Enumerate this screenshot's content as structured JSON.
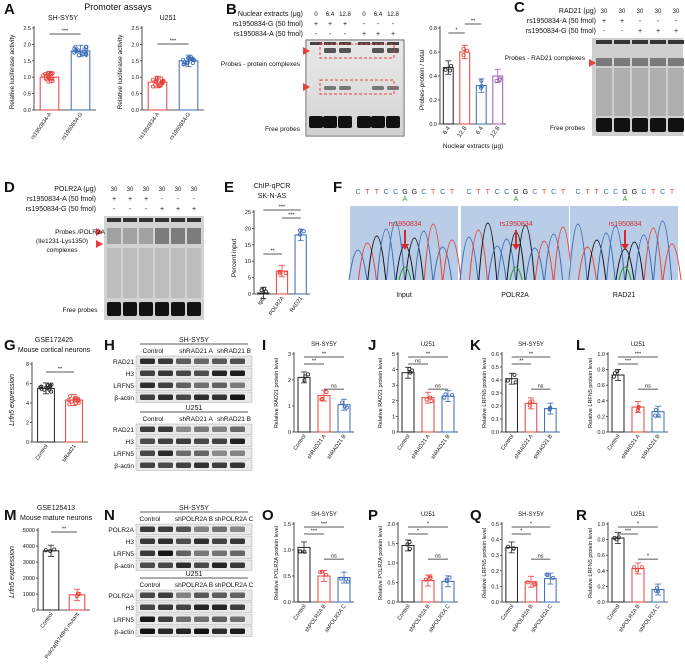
{
  "panels": {
    "A": {
      "letter": "A",
      "title": "Promoter assays",
      "left": {
        "cell": "SH-SY5Y",
        "ylabel": "Relative luciferase activity",
        "ticks": [
          "0.0",
          "0.5",
          "1.0",
          "1.5",
          "2.0",
          "2.5"
        ],
        "cats": [
          "rs1950834-A",
          "rs1950834-G"
        ],
        "values": [
          1.0,
          1.8
        ],
        "sig": "***"
      },
      "right": {
        "cell": "U251",
        "ylabel": "Relative luciferase activity",
        "ticks": [
          "0.0",
          "0.5",
          "1.0",
          "1.5",
          "2.0",
          "2.5"
        ],
        "cats": [
          "rs1950834-A",
          "rs1950834-G"
        ],
        "values": [
          0.85,
          1.5
        ],
        "sig": "***"
      }
    },
    "B": {
      "letter": "B",
      "row1": "Nuclear extracts (μg)",
      "row2": "rs1950834-G (50 fmol)",
      "row3": "rs1950834-A (50 fmol)",
      "amounts": [
        "0",
        "6.4",
        "12.8",
        "0",
        "6.4",
        "12.8"
      ],
      "signs_g": [
        "+",
        "+",
        "+",
        "-",
        "-",
        "-"
      ],
      "signs_a": [
        "-",
        "-",
        "-",
        "+",
        "+",
        "+"
      ],
      "complex_label": "Probes - protein complexes",
      "free_label": "Free probes",
      "chart": {
        "ylabel": "Probes-protein / total",
        "xlabel": "Nuclear extracts (μg)",
        "ticks": [
          "0.0",
          "0.2",
          "0.4",
          "0.6",
          "0.8"
        ],
        "cats": [
          "6.4",
          "12.8",
          "6.4",
          "12.8"
        ],
        "values": [
          0.47,
          0.6,
          0.32,
          0.4
        ],
        "sig1": "*",
        "sig2": "**"
      }
    },
    "C": {
      "letter": "C",
      "row1": "RAD21 (μg)",
      "row2": "rs1950834-A (50 fmol)",
      "row3": "rs1950834-G (50 fmol)",
      "amounts": [
        "30",
        "30",
        "30",
        "30",
        "30"
      ],
      "signs_a": [
        "+",
        "+",
        "-",
        "-",
        "-"
      ],
      "signs_g": [
        "-",
        "-",
        "+",
        "+",
        "+"
      ],
      "complex_label": "Probes - RAD21 complexes",
      "free_label": "Free probes"
    },
    "D": {
      "letter": "D",
      "row1": "POLR2A (μg)",
      "row2": "rs1950834-A (50 fmol)",
      "row3": "rs1950834-G (50 fmol)",
      "amounts": [
        "30",
        "30",
        "30",
        "30",
        "30",
        "30"
      ],
      "signs_a": [
        "+",
        "+",
        "+",
        "-",
        "-",
        "-"
      ],
      "signs_g": [
        "-",
        "-",
        "-",
        "+",
        "+",
        "+"
      ],
      "complex_label_1": "Probes /POLR2A",
      "complex_label_2": "(Ile1231-Lys1350)",
      "complex_label_3": "complexes",
      "free_label": "Free probes"
    },
    "E": {
      "letter": "E",
      "title1": "ChIP-qPCR",
      "title2": "SK-N-AS",
      "ylabel": "Percent input",
      "ticks": [
        "0",
        "5",
        "10",
        "15",
        "20",
        "25"
      ],
      "cats": [
        "IgG",
        "POLR2A",
        "RAD21"
      ],
      "values": [
        0.3,
        7,
        18
      ],
      "sig1": "**",
      "sig2": "***",
      "sig3": "***"
    },
    "F": {
      "letter": "F",
      "seq": [
        "C",
        "T",
        "T",
        "C",
        "C",
        "G",
        "G",
        "C",
        "T",
        "C",
        "T"
      ],
      "allele": "A",
      "snp": "rs1950834",
      "tracks": [
        "Input",
        "POLR2A",
        "RAD21"
      ]
    },
    "G": {
      "letter": "G",
      "title1": "GSE172425",
      "title2": "Mouse cortical neurons",
      "ylabel": "Lrfn5 expression",
      "ticks": [
        "0",
        "2",
        "4",
        "6",
        "8"
      ],
      "cats": [
        "Control",
        "siRad21"
      ],
      "values": [
        5.5,
        4.3
      ],
      "sig": "**"
    },
    "H": {
      "letter": "H",
      "blot1": {
        "cell": "SH-SY5Y",
        "lanes": [
          "Control",
          "shRAD21 A",
          "shRAD21 B"
        ],
        "rows": [
          "RAD21",
          "H3",
          "LRFN5",
          "β-actin"
        ]
      },
      "blot2": {
        "cell": "U251",
        "lanes": [
          "Control",
          "shRAD21 A",
          "shRAD21 B"
        ],
        "rows": [
          "RAD21",
          "H3",
          "LRFN5",
          "β-actin"
        ]
      }
    },
    "I": {
      "letter": "I",
      "cell": "SH-SY5Y",
      "ylabel": "Relative RAD21 protein level",
      "ticks": [
        "0",
        "1",
        "2",
        "3"
      ],
      "cats": [
        "Control",
        "shRAD21 A",
        "shRAD21 B"
      ],
      "values": [
        2.1,
        1.4,
        1.05
      ],
      "sigs": [
        "**",
        "**",
        "ns"
      ]
    },
    "J": {
      "letter": "J",
      "cell": "U251",
      "ylabel": "Relative RAD21 protein level",
      "ticks": [
        "0",
        "1",
        "2",
        "3",
        "4",
        "5"
      ],
      "cats": [
        "Control",
        "shRAD21 A",
        "shRAD21 B"
      ],
      "values": [
        3.8,
        2.2,
        2.3
      ],
      "sigs": [
        "ns",
        "**",
        "ns"
      ]
    },
    "K": {
      "letter": "K",
      "cell": "SH-SY5Y",
      "ylabel": "Relative LRFN5 protein level",
      "ticks": [
        "0.0",
        "0.1",
        "0.2",
        "0.3",
        "0.4",
        "0.5",
        "0.6"
      ],
      "cats": [
        "Control",
        "shRAD21 A",
        "shRAD21 B"
      ],
      "values": [
        0.41,
        0.22,
        0.18
      ],
      "sigs": [
        "**",
        "**",
        "ns"
      ]
    },
    "L": {
      "letter": "L",
      "cell": "U251",
      "ylabel": "Relative LRFN5 protein level",
      "ticks": [
        "0.0",
        "0.2",
        "0.4",
        "0.6",
        "0.8",
        "1.0"
      ],
      "cats": [
        "Control",
        "shRAD21 A",
        "shRAD21 B"
      ],
      "values": [
        0.73,
        0.32,
        0.26
      ],
      "sigs": [
        "***",
        "***",
        "ns"
      ]
    },
    "M": {
      "letter": "M",
      "title1": "GSE125413",
      "title2": "Mouse mature neurons",
      "ylabel": "Lrfn5 expression",
      "ticks": [
        "0",
        "1000",
        "2000",
        "3000",
        "4000",
        "5000"
      ],
      "cats": [
        "Control",
        "Polr2a(R749H) mutant"
      ],
      "values": [
        3700,
        950
      ],
      "sig": "**"
    },
    "N": {
      "letter": "N",
      "blot1": {
        "cell": "SH-SY5Y",
        "lanes": [
          "Control",
          "shPOLR2A B",
          "shPOLR2A C"
        ],
        "rows": [
          "POLR2A",
          "H3",
          "LRFN5",
          "β-actin"
        ]
      },
      "blot2": {
        "cell": "U251",
        "lanes": [
          "Control",
          "shPOLR2A B",
          "shPOLR2A C"
        ],
        "rows": [
          "POLR2A",
          "H3",
          "LRFN5",
          "β-actin"
        ]
      }
    },
    "O": {
      "letter": "O",
      "cell": "SH-SY5Y",
      "ylabel": "Relative POLR2A protein level",
      "ticks": [
        "0.0",
        "0.5",
        "1.0",
        "1.5"
      ],
      "cats": [
        "Control",
        "shPOLR2A B",
        "shPOLR2A C"
      ],
      "values": [
        1.05,
        0.5,
        0.47
      ],
      "sigs": [
        "***",
        "***",
        "ns"
      ]
    },
    "P": {
      "letter": "P",
      "cell": "U251",
      "ylabel": "Relative POLR2A protein level",
      "ticks": [
        "0.0",
        "0.5",
        "1.0",
        "1.5",
        "2.0"
      ],
      "cats": [
        "Control",
        "shPOLR2A B",
        "shPOLR2A C"
      ],
      "values": [
        1.45,
        0.55,
        0.53
      ],
      "sigs": [
        "*",
        "*",
        "ns"
      ]
    },
    "Q": {
      "letter": "Q",
      "cell": "SH-SY5Y",
      "ylabel": "Relative LRFN5 protein level",
      "ticks": [
        "0.0",
        "0.1",
        "0.2",
        "0.3",
        "0.4",
        "0.5"
      ],
      "cats": [
        "Control",
        "shPOLR2A B",
        "shPOLR2A C"
      ],
      "values": [
        0.35,
        0.13,
        0.15
      ],
      "sigs": [
        "*",
        "*",
        "ns"
      ]
    },
    "R": {
      "letter": "R",
      "cell": "U251",
      "ylabel": "Relative LRFN5 protein level",
      "ticks": [
        "0.0",
        "0.2",
        "0.4",
        "0.6",
        "0.8",
        "1.0"
      ],
      "cats": [
        "Control",
        "shPOLR2A B",
        "shPOLR2A C"
      ],
      "values": [
        0.82,
        0.43,
        0.16
      ],
      "sigs": [
        "***",
        "*",
        "*"
      ]
    }
  },
  "chart_data": [
    {
      "type": "bar",
      "panel": "A-left",
      "title": "SH-SY5Y",
      "categories": [
        "rs1950834-A",
        "rs1950834-G"
      ],
      "values": [
        1.0,
        1.8
      ],
      "ylabel": "Relative luciferase activity",
      "ylim": [
        0,
        2.5
      ]
    },
    {
      "type": "bar",
      "panel": "A-right",
      "title": "U251",
      "categories": [
        "rs1950834-A",
        "rs1950834-G"
      ],
      "values": [
        0.85,
        1.5
      ],
      "ylabel": "Relative luciferase activity",
      "ylim": [
        0,
        2.5
      ]
    },
    {
      "type": "bar",
      "panel": "B",
      "categories": [
        "6.4",
        "12.8",
        "6.4",
        "12.8"
      ],
      "values": [
        0.47,
        0.6,
        0.32,
        0.4
      ],
      "ylabel": "Probes-protein / total",
      "xlabel": "Nuclear extracts (μg)",
      "ylim": [
        0,
        0.8
      ]
    },
    {
      "type": "bar",
      "panel": "E",
      "title": "ChIP-qPCR SK-N-AS",
      "categories": [
        "IgG",
        "POLR2A",
        "RAD21"
      ],
      "values": [
        0.3,
        7,
        18
      ],
      "ylabel": "Percent input",
      "ylim": [
        0,
        25
      ]
    },
    {
      "type": "bar",
      "panel": "G",
      "title": "GSE172425 Mouse cortical neurons",
      "categories": [
        "Control",
        "siRad21"
      ],
      "values": [
        5.5,
        4.3
      ],
      "ylabel": "Lrfn5 expression",
      "ylim": [
        0,
        8
      ]
    },
    {
      "type": "bar",
      "panel": "I",
      "categories": [
        "Control",
        "shRAD21 A",
        "shRAD21 B"
      ],
      "values": [
        2.1,
        1.4,
        1.05
      ],
      "ylim": [
        0,
        3
      ]
    },
    {
      "type": "bar",
      "panel": "J",
      "categories": [
        "Control",
        "shRAD21 A",
        "shRAD21 B"
      ],
      "values": [
        3.8,
        2.2,
        2.3
      ],
      "ylim": [
        0,
        5
      ]
    },
    {
      "type": "bar",
      "panel": "K",
      "categories": [
        "Control",
        "shRAD21 A",
        "shRAD21 B"
      ],
      "values": [
        0.41,
        0.22,
        0.18
      ],
      "ylim": [
        0,
        0.6
      ]
    },
    {
      "type": "bar",
      "panel": "L",
      "categories": [
        "Control",
        "shRAD21 A",
        "shRAD21 B"
      ],
      "values": [
        0.73,
        0.32,
        0.26
      ],
      "ylim": [
        0,
        1.0
      ]
    },
    {
      "type": "bar",
      "panel": "M",
      "title": "GSE125413 Mouse mature neurons",
      "categories": [
        "Control",
        "Polr2a(R749H) mutant"
      ],
      "values": [
        3700,
        950
      ],
      "ylabel": "Lrfn5 expression",
      "ylim": [
        0,
        5000
      ]
    },
    {
      "type": "bar",
      "panel": "O",
      "categories": [
        "Control",
        "shPOLR2A B",
        "shPOLR2A C"
      ],
      "values": [
        1.05,
        0.5,
        0.47
      ],
      "ylim": [
        0,
        1.5
      ]
    },
    {
      "type": "bar",
      "panel": "P",
      "categories": [
        "Control",
        "shPOLR2A B",
        "shPOLR2A C"
      ],
      "values": [
        1.45,
        0.55,
        0.53
      ],
      "ylim": [
        0,
        2.0
      ]
    },
    {
      "type": "bar",
      "panel": "Q",
      "categories": [
        "Control",
        "shPOLR2A B",
        "shPOLR2A C"
      ],
      "values": [
        0.35,
        0.13,
        0.15
      ],
      "ylim": [
        0,
        0.5
      ]
    },
    {
      "type": "bar",
      "panel": "R",
      "categories": [
        "Control",
        "shPOLR2A B",
        "shPOLR2A C"
      ],
      "values": [
        0.82,
        0.43,
        0.16
      ],
      "ylim": [
        0,
        1.0
      ]
    }
  ],
  "colors": {
    "black": "#222222",
    "red": "#e8403a",
    "blue": "#3a6bb5",
    "purple": "#a05ab8",
    "gel_bg": "#dcdcdc",
    "chrom_bg": "#b9cde6",
    "snp": "#d62a2a",
    "green": "#2a9a3a"
  }
}
